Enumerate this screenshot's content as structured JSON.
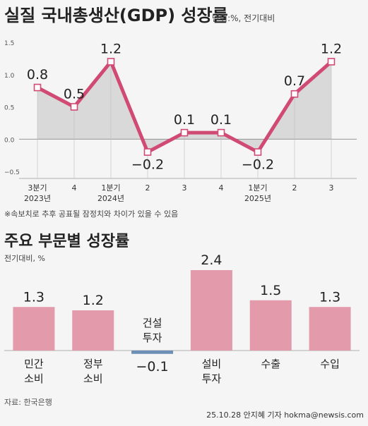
{
  "gdp": {
    "title": "실질 국내총생산(GDP) 성장률",
    "unit": "단위:%, 전기대비",
    "note": "※속보치로 추후 공표될 잠정치와 차이가 있을 수 있음"
  },
  "sector": {
    "title": "주요 부문별 성장률",
    "unit": "전기대비, %"
  },
  "source": "자료: 한국은행",
  "credit": "25.10.28 안지혜 기자 hokma@newsis.com",
  "chart_data": [
    {
      "type": "line",
      "title": "실질 국내총생산(GDP) 성장률",
      "x": [
        "3분기 2023년",
        "4",
        "1분기 2024년",
        "2",
        "3",
        "4",
        "1분기 2025년",
        "2",
        "3"
      ],
      "tick_top": [
        "3분기",
        "4",
        "1분기",
        "2",
        "3",
        "4",
        "1분기",
        "2",
        "3"
      ],
      "tick_bottom": [
        "2023년",
        "",
        "2024년",
        "",
        "",
        "",
        "2025년",
        "",
        ""
      ],
      "values": [
        0.8,
        0.5,
        1.2,
        -0.2,
        0.1,
        0.1,
        -0.2,
        0.7,
        1.2
      ],
      "value_labels": [
        "0.8",
        "0.5",
        "1.2",
        "−0.2",
        "0.1",
        "0.1",
        "−0.2",
        "0.7",
        "1.2"
      ],
      "ylim": [
        -0.5,
        1.5
      ],
      "yticks": [
        -0.5,
        0.0,
        0.5,
        1.0,
        1.5
      ],
      "ytick_labels": [
        "−0.5",
        "0.0",
        "0.5",
        "1.0",
        "1.5"
      ],
      "line_color": "#d04a74",
      "area_color": "#d9d9d9",
      "grid": false
    },
    {
      "type": "bar",
      "title": "주요 부문별 성장률",
      "categories": [
        "민간 소비",
        "정부 소비",
        "건설 투자",
        "설비 투자",
        "수출",
        "수입"
      ],
      "label_lines": [
        [
          "민간",
          "소비"
        ],
        [
          "정부",
          "소비"
        ],
        [
          "건설",
          "투자"
        ],
        [
          "설비",
          "투자"
        ],
        [
          "수출"
        ],
        [
          "수입"
        ]
      ],
      "values": [
        1.3,
        1.2,
        -0.1,
        2.4,
        1.5,
        1.3
      ],
      "value_labels": [
        "1.3",
        "1.2",
        "−0.1",
        "2.4",
        "1.5",
        "1.3"
      ],
      "positive_color": "#e39aab",
      "negative_color": "#6e8fb5"
    }
  ]
}
